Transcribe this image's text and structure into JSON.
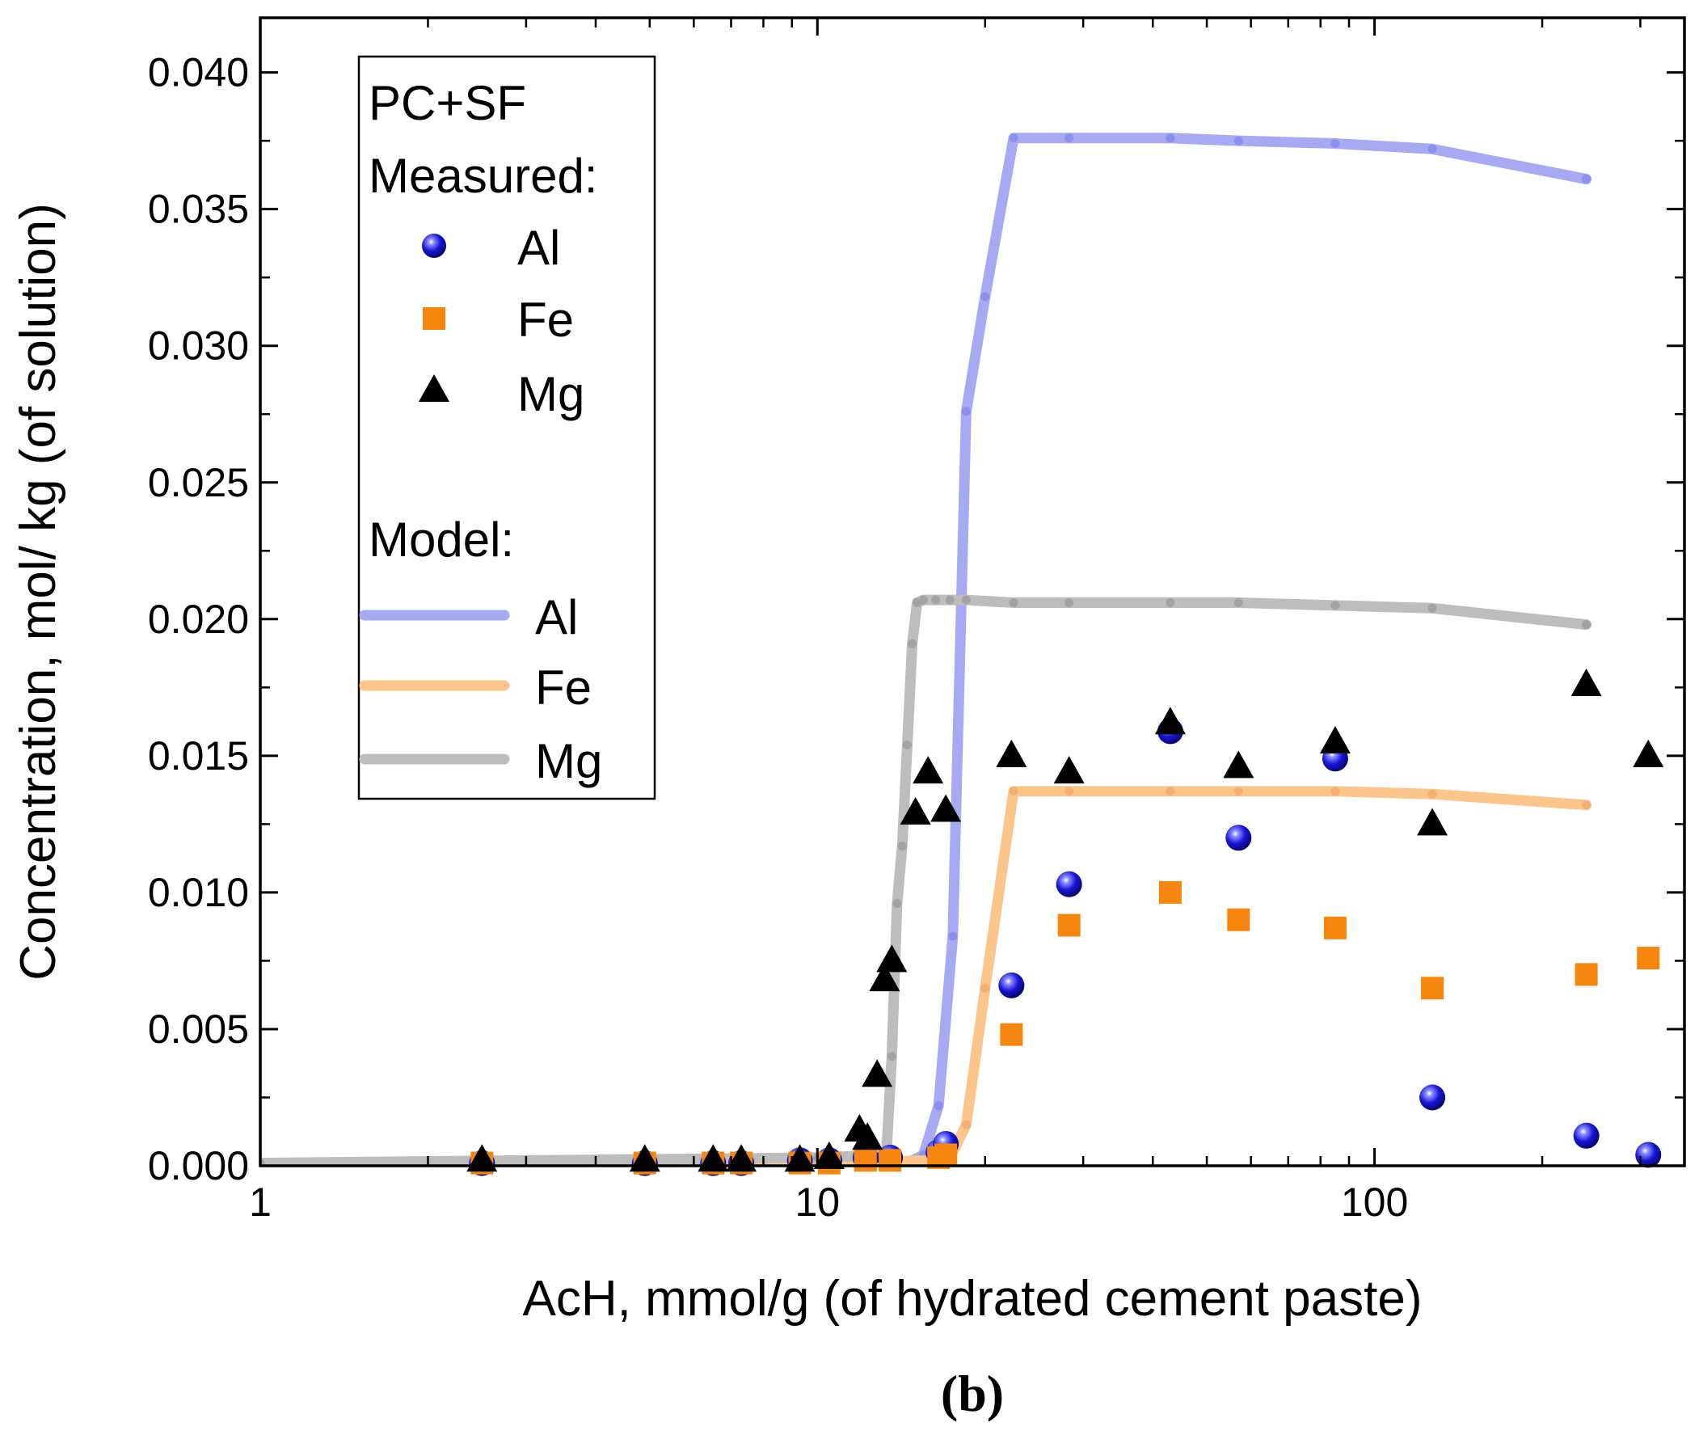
{
  "chart_data": {
    "type": "scatter",
    "panel_label": "(b)",
    "xlabel": "AcH, mmol/g (of hydrated cement paste)",
    "ylabel": "Concentration, mol/ kg (of solution)",
    "xscale": "log",
    "xlim": [
      1,
      360
    ],
    "ylim": [
      0,
      0.042
    ],
    "x_ticks": [
      1,
      10,
      100
    ],
    "x_tick_labels": [
      "1",
      "10",
      "100"
    ],
    "y_ticks": [
      0,
      0.005,
      0.01,
      0.015,
      0.02,
      0.025,
      0.03,
      0.035,
      0.04
    ],
    "y_tick_labels": [
      "0.000",
      "0.005",
      "0.010",
      "0.015",
      "0.020",
      "0.025",
      "0.030",
      "0.035",
      "0.040"
    ],
    "legend": {
      "position": "top-left",
      "title": "PC+SF",
      "measured_header": "Measured:",
      "model_header": "Model:",
      "measured_entries": [
        "Al",
        "Fe",
        "Mg"
      ],
      "model_entries": [
        "Al",
        "Fe",
        "Mg"
      ]
    },
    "colors": {
      "al_marker": "#1515d6",
      "fe_marker": "#f7860f",
      "mg_marker": "#000000",
      "al_model": "#a7a9f3",
      "fe_model": "#fbc58c",
      "mg_model": "#bdbdbd"
    },
    "measured": [
      {
        "name": "Al",
        "marker": "sphere",
        "x": [
          2.5,
          4.9,
          6.5,
          7.3,
          9.3,
          10.5,
          12.2,
          13.5,
          16.5,
          17.0,
          22.3,
          28.3,
          43.0,
          57.0,
          85.0,
          127,
          240,
          310
        ],
        "y": [
          0.0001,
          0.0001,
          0.0001,
          0.0001,
          0.0002,
          0.0002,
          0.0003,
          0.0003,
          0.0005,
          0.0008,
          0.0066,
          0.0103,
          0.0159,
          0.012,
          0.0149,
          0.0025,
          0.0011,
          0.0004
        ]
      },
      {
        "name": "Fe",
        "marker": "square",
        "x": [
          2.5,
          4.9,
          6.5,
          7.3,
          9.3,
          10.5,
          12.2,
          13.5,
          16.5,
          17.0,
          22.3,
          28.3,
          43.0,
          57.0,
          85.0,
          127,
          240,
          310
        ],
        "y": [
          0.0001,
          0.0001,
          0.0001,
          0.0001,
          0.0001,
          0.0001,
          0.0002,
          0.0002,
          0.0003,
          0.0004,
          0.0048,
          0.0088,
          0.01,
          0.009,
          0.0087,
          0.0065,
          0.007,
          0.0076
        ]
      },
      {
        "name": "Mg",
        "marker": "triangle",
        "x": [
          2.5,
          4.9,
          6.5,
          7.3,
          9.3,
          10.5,
          11.9,
          12.3,
          12.8,
          13.2,
          13.6,
          15.0,
          15.8,
          17.0,
          22.3,
          28.3,
          43.0,
          57.0,
          85.0,
          127,
          240,
          310
        ],
        "y": [
          0.0002,
          0.0002,
          0.0002,
          0.0002,
          0.0002,
          0.0003,
          0.0013,
          0.001,
          0.0033,
          0.0068,
          0.0075,
          0.0129,
          0.0144,
          0.013,
          0.015,
          0.0144,
          0.0162,
          0.0146,
          0.0155,
          0.0125,
          0.0176,
          0.015
        ]
      }
    ],
    "model": [
      {
        "name": "Al",
        "x": [
          1,
          10,
          14.5,
          15.5,
          16.5,
          17.5,
          18.5,
          20.0,
          22.5,
          28.3,
          43.0,
          57.0,
          85.0,
          127,
          240
        ],
        "y": [
          0.0001,
          0.0001,
          0.0001,
          0.0004,
          0.0022,
          0.0084,
          0.0276,
          0.0318,
          0.0376,
          0.0376,
          0.0376,
          0.0375,
          0.0374,
          0.0372,
          0.0361
        ]
      },
      {
        "name": "Fe",
        "x": [
          1,
          10,
          16.5,
          17.5,
          18.5,
          20.0,
          22.5,
          28.3,
          43.0,
          57.0,
          85.0,
          127,
          240
        ],
        "y": [
          0.0001,
          0.0001,
          0.0002,
          0.0005,
          0.0015,
          0.0065,
          0.0137,
          0.0137,
          0.0137,
          0.0137,
          0.0137,
          0.0136,
          0.0132
        ]
      },
      {
        "name": "Mg",
        "x": [
          1,
          10,
          13.3,
          13.6,
          13.9,
          14.2,
          14.5,
          14.8,
          15.1,
          15.5,
          16.3,
          17.3,
          18.5,
          22.5,
          28.3,
          43.0,
          57.0,
          85.0,
          127,
          240
        ],
        "y": [
          0.0001,
          0.0003,
          0.0004,
          0.004,
          0.0096,
          0.0117,
          0.0154,
          0.0191,
          0.0206,
          0.0207,
          0.0207,
          0.0207,
          0.0207,
          0.0206,
          0.0206,
          0.0206,
          0.0206,
          0.0205,
          0.0204,
          0.0198
        ]
      }
    ]
  }
}
